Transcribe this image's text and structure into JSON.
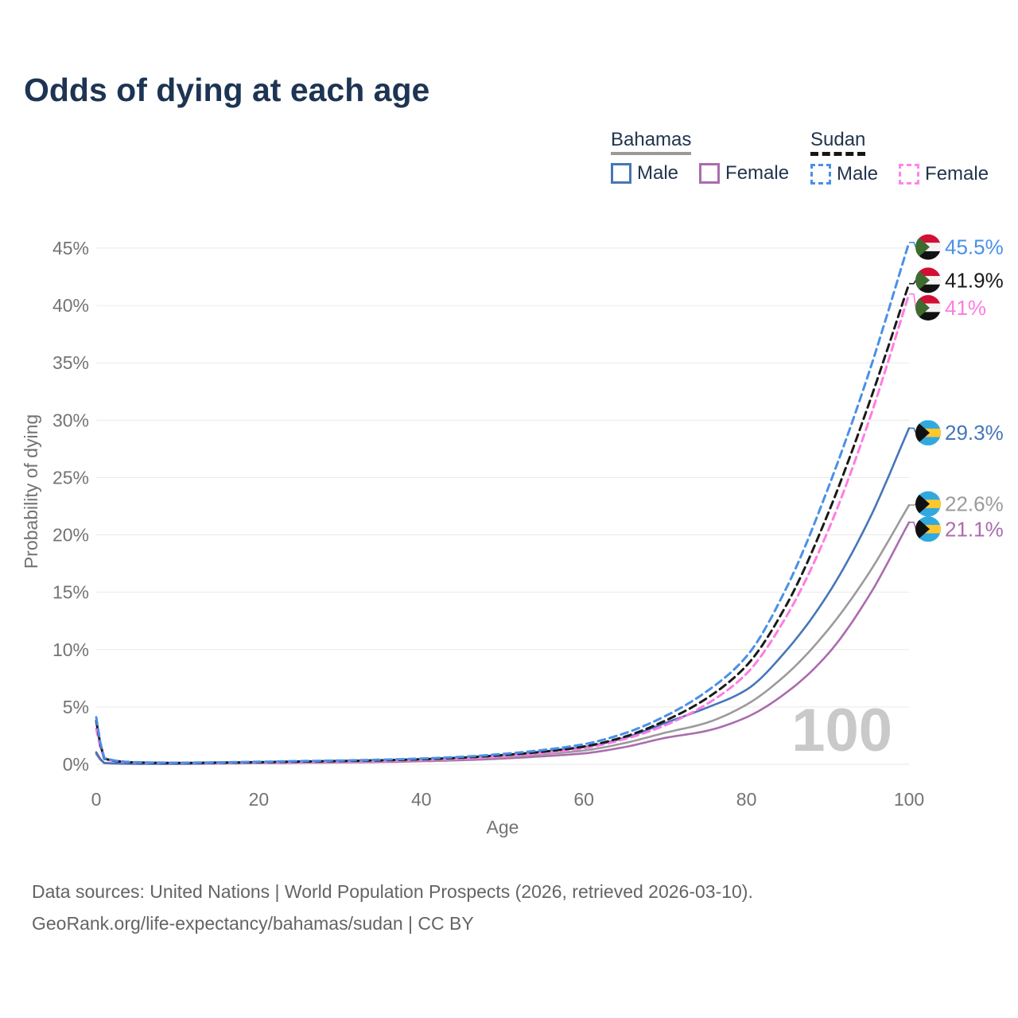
{
  "title": "Odds of dying at each age",
  "watermark": "100",
  "legend": {
    "groups": [
      {
        "country": "Bahamas",
        "underline_color": "#9a9a9a",
        "underline_style": "solid",
        "items": [
          {
            "label": "Male",
            "color": "#4676b8",
            "dashed": false
          },
          {
            "label": "Female",
            "color": "#ab6cae",
            "dashed": false
          }
        ]
      },
      {
        "country": "Sudan",
        "underline_color": "#161616",
        "underline_style": "dashed",
        "items": [
          {
            "label": "Male",
            "color": "#4a90e8",
            "dashed": true
          },
          {
            "label": "Female",
            "color": "#ff85e6",
            "dashed": true
          }
        ]
      }
    ]
  },
  "footer": {
    "line1": "Data sources: United Nations | World Population Prospects (2026, retrieved 2026-03-10).",
    "line2": "GeoRank.org/life-expectancy/bahamas/sudan | CC BY"
  },
  "colors": {
    "title": "#1d3453",
    "legend_text": "#22344e",
    "axis_text": "#737373",
    "grid": "#e9e9e9",
    "watermark": "#c9c9c9",
    "footer_text": "#646464"
  },
  "chart_data": {
    "type": "line",
    "title": "Odds of dying at each age",
    "xlabel": "Age",
    "ylabel": "Probability of dying",
    "xlim": [
      0,
      100
    ],
    "ylim": [
      0,
      45.5
    ],
    "x_ticks": [
      0,
      20,
      40,
      60,
      80,
      100
    ],
    "y_ticks": [
      0,
      5,
      10,
      15,
      20,
      25,
      30,
      35,
      40,
      45
    ],
    "y_tick_suffix": "%",
    "grid": "horizontal",
    "legend_position": "top-right",
    "x": [
      0,
      1,
      5,
      10,
      15,
      20,
      25,
      30,
      35,
      40,
      45,
      50,
      55,
      60,
      65,
      70,
      75,
      80,
      85,
      90,
      95,
      100
    ],
    "series": [
      {
        "name": "Sudan Male",
        "country": "Sudan",
        "sex": "Male",
        "color": "#4a90e8",
        "dashed": true,
        "flag": "sudan",
        "end_label": "45.5%",
        "end_value": 45.5,
        "label_v": 45.1,
        "values": [
          4.1,
          0.55,
          0.18,
          0.14,
          0.17,
          0.22,
          0.28,
          0.33,
          0.4,
          0.5,
          0.65,
          0.9,
          1.25,
          1.75,
          2.7,
          4.2,
          6.3,
          9.4,
          15.5,
          24.0,
          34.0,
          45.5
        ]
      },
      {
        "name": "Sudan Both sexes",
        "country": "Sudan",
        "sex": "Both",
        "color": "#1a1a1a",
        "dashed": true,
        "flag": "sudan",
        "end_label": "41.9%",
        "end_value": 41.9,
        "label_v": 42.2,
        "values": [
          3.8,
          0.5,
          0.16,
          0.12,
          0.15,
          0.19,
          0.24,
          0.29,
          0.35,
          0.44,
          0.58,
          0.8,
          1.1,
          1.55,
          2.4,
          3.8,
          5.7,
          8.6,
          14.0,
          21.8,
          31.3,
          41.9
        ]
      },
      {
        "name": "Sudan Female",
        "country": "Sudan",
        "sex": "Female",
        "color": "#ff7ce0",
        "dashed": true,
        "flag": "sudan",
        "end_label": "41%",
        "end_value": 41.0,
        "label_v": 39.8,
        "values": [
          3.1,
          0.45,
          0.14,
          0.11,
          0.13,
          0.16,
          0.2,
          0.25,
          0.3,
          0.38,
          0.5,
          0.7,
          0.98,
          1.4,
          2.2,
          3.4,
          5.2,
          7.9,
          13.0,
          20.3,
          29.8,
          41.0
        ]
      },
      {
        "name": "Bahamas Male",
        "country": "Bahamas",
        "sex": "Male",
        "color": "#4676b8",
        "dashed": false,
        "flag": "bahamas",
        "end_label": "29.3%",
        "end_value": 29.3,
        "label_v": 28.9,
        "values": [
          1.05,
          0.12,
          0.05,
          0.05,
          0.1,
          0.18,
          0.24,
          0.29,
          0.35,
          0.44,
          0.58,
          0.8,
          1.1,
          1.5,
          2.3,
          3.6,
          4.9,
          6.5,
          10.0,
          14.8,
          21.2,
          29.3
        ]
      },
      {
        "name": "Bahamas Both sexes",
        "country": "Bahamas",
        "sex": "Both",
        "color": "#9b9b9b",
        "dashed": false,
        "flag": "bahamas",
        "end_label": "22.6%",
        "end_value": 22.6,
        "label_v": 22.7,
        "values": [
          1.0,
          0.11,
          0.05,
          0.05,
          0.08,
          0.14,
          0.18,
          0.22,
          0.27,
          0.35,
          0.46,
          0.63,
          0.88,
          1.2,
          1.85,
          2.75,
          3.6,
          5.2,
          7.9,
          11.7,
          16.6,
          22.6
        ]
      },
      {
        "name": "Bahamas Female",
        "country": "Bahamas",
        "sex": "Female",
        "color": "#ab6cae",
        "dashed": false,
        "flag": "bahamas",
        "end_label": "21.1%",
        "end_value": 21.1,
        "label_v": 20.5,
        "values": [
          0.9,
          0.1,
          0.04,
          0.04,
          0.06,
          0.1,
          0.13,
          0.16,
          0.2,
          0.27,
          0.36,
          0.5,
          0.7,
          0.95,
          1.5,
          2.3,
          2.9,
          4.1,
          6.3,
          9.6,
          14.6,
          21.1
        ]
      }
    ]
  }
}
